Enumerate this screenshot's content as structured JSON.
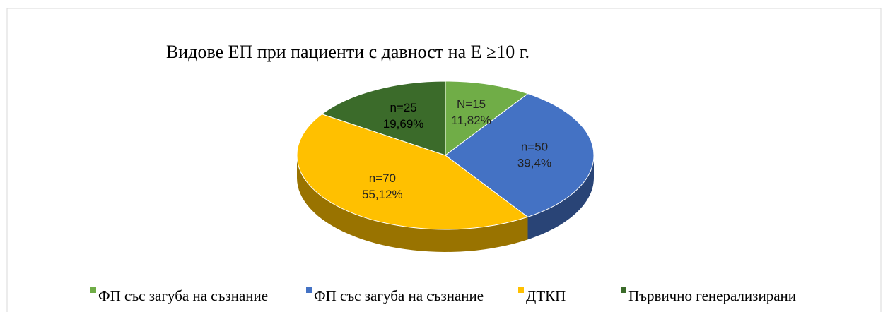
{
  "chart_data": {
    "type": "pie",
    "title": "Видове ЕП при пациенти с давност на Е ≥10 г.",
    "categories": [
      "ФП със загуба на съзнание",
      "ФП със загуба на съзнание",
      "ДТКП",
      "Първично генерализирани"
    ],
    "values": [
      11.82,
      39.4,
      55.12,
      19.69
    ],
    "value_labels": [
      "11,82%",
      "39,4%",
      "55,12%",
      "19,69%"
    ],
    "counts": [
      15,
      50,
      70,
      25
    ],
    "count_labels": [
      "N=15",
      "n=50",
      "n=70",
      "n=25"
    ],
    "colors": [
      "#70ad47",
      "#4472c4",
      "#ffc000",
      "#3b6b2a"
    ],
    "legend": "bottom"
  }
}
